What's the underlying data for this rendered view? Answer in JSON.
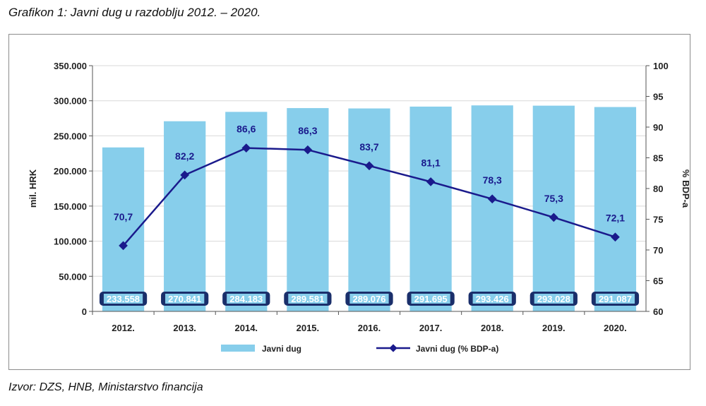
{
  "caption": "Grafikon 1: Javni dug u razdoblju 2012. – 2020.",
  "source": "Izvor: DZS, HNB, Ministarstvo financija",
  "colors": {
    "bar": "#87CEEB",
    "line": "#1a1a8c",
    "bar_label_bg": "#1a2f6b",
    "grid": "#d9d9d9"
  },
  "chart_data": {
    "type": "bar",
    "categories": [
      "2012.",
      "2013.",
      "2014.",
      "2015.",
      "2016.",
      "2017.",
      "2018.",
      "2019.",
      "2020."
    ],
    "series": [
      {
        "name": "Javni dug",
        "type": "bar",
        "axis": "left",
        "values": [
          233558,
          270841,
          284183,
          289581,
          289076,
          291695,
          293426,
          293028,
          291087
        ],
        "labels": [
          "233.558",
          "270.841",
          "284.183",
          "289.581",
          "289.076",
          "291.695",
          "293.426",
          "293.028",
          "291.087"
        ]
      },
      {
        "name": "Javni dug (% BDP-a)",
        "type": "line",
        "axis": "right",
        "values": [
          70.7,
          82.2,
          86.6,
          86.3,
          83.7,
          81.1,
          78.3,
          75.3,
          72.1
        ],
        "labels": [
          "70,7",
          "82,2",
          "86,6",
          "86,3",
          "83,7",
          "81,1",
          "78,3",
          "75,3",
          "72,1"
        ]
      }
    ],
    "ylabel": "mil. HRK",
    "ylabel_right": "% BDP-a",
    "ylim": [
      0,
      350000
    ],
    "ylim_right": [
      60,
      100
    ],
    "yticks": [
      "0",
      "50.000",
      "100.000",
      "150.000",
      "200.000",
      "250.000",
      "300.000",
      "350.000"
    ],
    "yticks_right": [
      "60",
      "65",
      "70",
      "75",
      "80",
      "85",
      "90",
      "95",
      "100"
    ],
    "grid": true,
    "legend_position": "bottom"
  }
}
